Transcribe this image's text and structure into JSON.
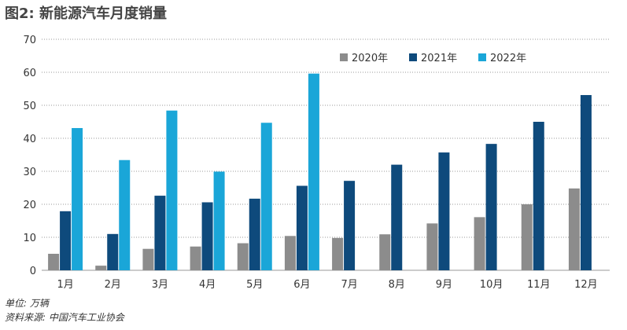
{
  "colors": {
    "s2020": "#8c8c8c",
    "s2021": "#0e4a7c",
    "s2022": "#1aa6d8",
    "grid": "#9a9a9a"
  },
  "chart_data": {
    "type": "bar",
    "title": "图2: 新能源汽车月度销量",
    "categories": [
      "1月",
      "2月",
      "3月",
      "4月",
      "5月",
      "6月",
      "7月",
      "8月",
      "9月",
      "10月",
      "11月",
      "12月"
    ],
    "series": [
      {
        "name": "2020年",
        "values": [
          5.0,
          1.4,
          6.5,
          7.2,
          8.2,
          10.4,
          9.8,
          10.9,
          14.2,
          16.1,
          20.0,
          24.8
        ]
      },
      {
        "name": "2021年",
        "values": [
          17.9,
          11.0,
          22.6,
          20.6,
          21.7,
          25.6,
          27.1,
          32.0,
          35.7,
          38.3,
          45.0,
          53.1
        ]
      },
      {
        "name": "2022年",
        "values": [
          43.1,
          33.4,
          48.4,
          29.9,
          44.7,
          59.6,
          null,
          null,
          null,
          null,
          null,
          null
        ]
      }
    ],
    "yticks": [
      0,
      10,
      20,
      30,
      40,
      50,
      60,
      70
    ],
    "ylim": [
      0,
      70
    ],
    "xlabel": "",
    "ylabel": "",
    "grid": true,
    "legend": "top-right",
    "unit_note": "单位: 万辆",
    "source_note": "资料来源: 中国汽车工业协会"
  }
}
